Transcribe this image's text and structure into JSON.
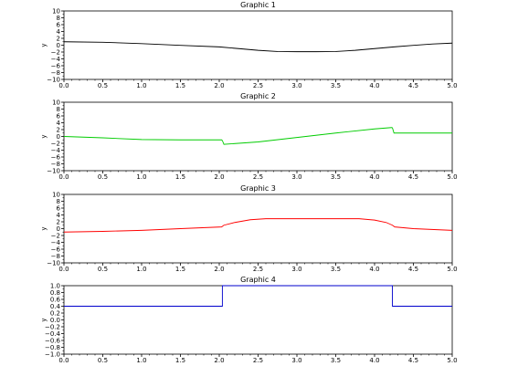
{
  "chart_data": [
    {
      "type": "line",
      "title": "Graphic 1",
      "xlabel": "",
      "ylabel": "y",
      "xlim": [
        0,
        5
      ],
      "ylim": [
        -10,
        10
      ],
      "xticks": [
        "0.0",
        "0.5",
        "1.0",
        "1.5",
        "2.0",
        "2.5",
        "3.0",
        "3.5",
        "4.0",
        "4.5",
        "5.0"
      ],
      "yticks": [
        "10",
        "8",
        "6",
        "4",
        "2",
        "0",
        "−2",
        "−4",
        "−6",
        "−8",
        "−10"
      ],
      "grid": false,
      "series": [
        {
          "color": "#000000",
          "x": [
            0,
            0.5,
            1.0,
            1.5,
            2.0,
            2.25,
            2.5,
            2.75,
            3.0,
            3.25,
            3.5,
            3.75,
            4.0,
            4.25,
            4.5,
            4.75,
            5.0
          ],
          "y": [
            1.0,
            0.85,
            0.45,
            -0.05,
            -0.5,
            -1.0,
            -1.5,
            -1.85,
            -1.9,
            -1.9,
            -1.85,
            -1.5,
            -1.0,
            -0.5,
            -0.05,
            0.35,
            0.6
          ]
        }
      ]
    },
    {
      "type": "line",
      "title": "Graphic 2",
      "xlabel": "",
      "ylabel": "y",
      "xlim": [
        0,
        5
      ],
      "ylim": [
        -10,
        10
      ],
      "xticks": [
        "0.0",
        "0.5",
        "1.0",
        "1.5",
        "2.0",
        "2.5",
        "3.0",
        "3.5",
        "4.0",
        "4.5",
        "5.0"
      ],
      "yticks": [
        "10",
        "8",
        "6",
        "4",
        "2",
        "0",
        "−2",
        "−4",
        "−6",
        "−8",
        "−10"
      ],
      "grid": false,
      "series": [
        {
          "color": "#00cc00",
          "x": [
            0,
            0.5,
            1.0,
            1.5,
            2.03,
            2.04,
            2.06,
            2.5,
            3.0,
            3.5,
            4.0,
            4.22,
            4.23,
            4.25,
            4.5,
            5.0
          ],
          "y": [
            0.0,
            -0.4,
            -0.9,
            -1.0,
            -1.0,
            -1.2,
            -2.3,
            -1.6,
            -0.3,
            1.0,
            2.2,
            2.6,
            2.5,
            1.0,
            1.0,
            1.0
          ]
        }
      ]
    },
    {
      "type": "line",
      "title": "Graphic 3",
      "xlabel": "",
      "ylabel": "y",
      "xlim": [
        0,
        5
      ],
      "ylim": [
        -10,
        10
      ],
      "xticks": [
        "0.0",
        "0.5",
        "1.0",
        "1.5",
        "2.0",
        "2.5",
        "3.0",
        "3.5",
        "4.0",
        "4.5",
        "5.0"
      ],
      "yticks": [
        "10",
        "8",
        "6",
        "4",
        "2",
        "0",
        "−2",
        "−4",
        "−6",
        "−8",
        "−10"
      ],
      "grid": false,
      "series": [
        {
          "color": "#ff0000",
          "x": [
            0,
            0.5,
            1.0,
            1.5,
            2.03,
            2.06,
            2.2,
            2.4,
            2.6,
            3.0,
            3.5,
            3.8,
            4.0,
            4.15,
            4.23,
            4.26,
            4.5,
            5.0
          ],
          "y": [
            -1.0,
            -0.8,
            -0.5,
            0.0,
            0.5,
            1.0,
            1.8,
            2.6,
            2.9,
            2.9,
            2.9,
            2.9,
            2.5,
            1.8,
            1.0,
            0.5,
            0.0,
            -0.5
          ]
        }
      ]
    },
    {
      "type": "line",
      "title": "Graphic 4",
      "xlabel": "",
      "ylabel": "y",
      "xlim": [
        0,
        5
      ],
      "ylim": [
        -1,
        1
      ],
      "xticks": [
        "0.0",
        "0.5",
        "1.0",
        "1.5",
        "2.0",
        "2.5",
        "3.0",
        "3.5",
        "4.0",
        "4.5",
        "5.0"
      ],
      "yticks": [
        "1.0",
        "0.8",
        "0.6",
        "0.4",
        "0.2",
        "0.0",
        "−0.2",
        "−0.4",
        "−0.6",
        "−0.8",
        "−1.0"
      ],
      "grid": false,
      "series": [
        {
          "color": "#0000cc",
          "x": [
            0,
            2.04,
            2.04,
            4.23,
            4.23,
            5.0
          ],
          "y": [
            0.4,
            0.4,
            1.0,
            1.0,
            0.4,
            0.4
          ]
        }
      ]
    }
  ]
}
